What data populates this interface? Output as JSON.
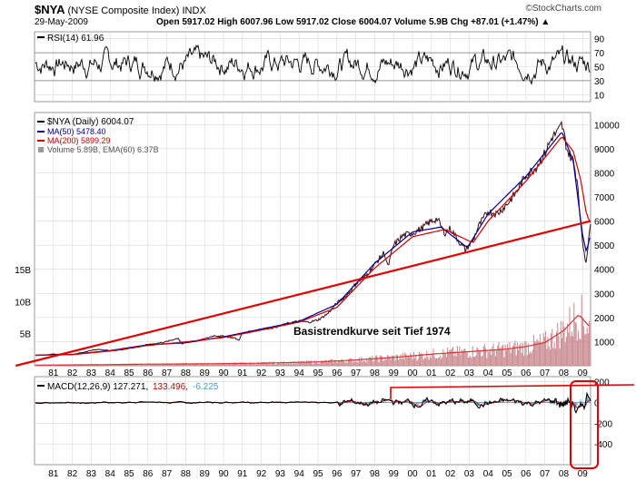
{
  "header": {
    "ticker": "$NYA",
    "name": "(NYSE Composite Index)",
    "exchange": "INDX",
    "date": "29-May-2009",
    "quote": "Open 5917.02  High 6007.96  Low 5917.02  Close 6004.07  Volume 5.9B  Chg +87.01 (+1.47%) ▲",
    "brand": "©StockCharts.com"
  },
  "colors": {
    "price": "#3a0a14",
    "ma50": "#000090",
    "ma200": "#d00000",
    "trend": "#e00000",
    "volume": "#c8888e",
    "rsi": "#000000",
    "macd": "#000000",
    "signal": "#d00000",
    "histogram": "#4a9bd0",
    "grid": "#d8d8d8"
  },
  "chart_data": [
    {
      "type": "line",
      "title": "RSI(14) 61.96",
      "legend": [
        "RSI(14) 61.96"
      ],
      "ylim": [
        0,
        100
      ],
      "y_ticks": [
        "90",
        "70",
        "50",
        "30",
        "10"
      ],
      "guide_lines": [
        70,
        30
      ],
      "x_start_year": 1980,
      "x_end_year": 2009.42
    },
    {
      "type": "line",
      "title": "$NYA (Daily) 6004.07",
      "legend": [
        "$NYA (Daily) 6004.07",
        "MA(50) 5478.40",
        "MA(200) 5899.29",
        "Volume 5.89B, EMA(60) 6.37B"
      ],
      "y_ticks": [
        "10000",
        "9000",
        "8000",
        "7000",
        "6000",
        "5000",
        "4000",
        "3000",
        "2000",
        "1000"
      ],
      "volume_ticks": [
        "15B",
        "10B",
        "5B"
      ],
      "x_ticks": [
        "81",
        "82",
        "83",
        "84",
        "85",
        "86",
        "87",
        "88",
        "89",
        "90",
        "91",
        "92",
        "93",
        "94",
        "95",
        "96",
        "97",
        "98",
        "99",
        "00",
        "01",
        "02",
        "03",
        "04",
        "05",
        "06",
        "07",
        "08",
        "09"
      ],
      "series": [
        {
          "name": "$NYA",
          "x": [
            1980.0,
            1980.5,
            1981.0,
            1981.5,
            1982.0,
            1982.6,
            1983.0,
            1983.5,
            1984.0,
            1984.5,
            1985.0,
            1985.5,
            1986.0,
            1986.5,
            1987.0,
            1987.6,
            1987.8,
            1988.0,
            1988.5,
            1989.0,
            1989.5,
            1990.0,
            1990.6,
            1990.8,
            1991.0,
            1991.5,
            1992.0,
            1992.5,
            1993.0,
            1993.5,
            1994.0,
            1994.5,
            1995.0,
            1995.5,
            1996.0,
            1996.5,
            1997.0,
            1997.5,
            1998.0,
            1998.5,
            1998.7,
            1999.0,
            1999.5,
            2000.0,
            2000.5,
            2000.9,
            2001.3,
            2001.7,
            2002.0,
            2002.5,
            2002.8,
            2003.2,
            2003.5,
            2004.0,
            2004.5,
            2005.0,
            2005.5,
            2006.0,
            2006.5,
            2007.0,
            2007.4,
            2007.7,
            2007.9,
            2008.2,
            2008.5,
            2008.75,
            2008.9,
            2009.0,
            2009.17,
            2009.3,
            2009.42
          ],
          "values": [
            430,
            450,
            480,
            470,
            460,
            560,
            640,
            680,
            620,
            650,
            720,
            780,
            880,
            930,
            1000,
            1150,
            900,
            960,
            1020,
            1110,
            1250,
            1220,
            1150,
            1050,
            1350,
            1430,
            1540,
            1560,
            1660,
            1780,
            1850,
            1800,
            1900,
            2150,
            2600,
            2900,
            3400,
            3700,
            4200,
            4700,
            4100,
            5000,
            5400,
            5500,
            5700,
            5950,
            6100,
            5500,
            5700,
            5100,
            4800,
            5200,
            5800,
            6400,
            6300,
            6700,
            7200,
            7900,
            8200,
            8800,
            9500,
            9700,
            10000,
            8900,
            8500,
            7500,
            5800,
            5100,
            4300,
            5000,
            6004
          ]
        },
        {
          "name": "MA(50)",
          "x": [
            1980.0,
            1982.0,
            1984.0,
            1986.0,
            1988.0,
            1990.0,
            1992.0,
            1994.0,
            1996.0,
            1998.0,
            2000.0,
            2001.5,
            2002.9,
            2004.0,
            2006.0,
            2007.9,
            2008.5,
            2009.0,
            2009.2,
            2009.42
          ],
          "values": [
            440,
            470,
            630,
            870,
            950,
            1200,
            1520,
            1840,
            2550,
            4250,
            5550,
            5750,
            4900,
            6300,
            7850,
            9700,
            8500,
            5400,
            4700,
            5478
          ]
        },
        {
          "name": "MA(200)",
          "x": [
            1980.0,
            1982.0,
            1984.0,
            1986.0,
            1988.0,
            1990.0,
            1992.0,
            1994.0,
            1996.0,
            1998.0,
            2000.0,
            2001.7,
            2003.2,
            2004.0,
            2006.0,
            2007.9,
            2008.5,
            2008.9,
            2009.2,
            2009.42
          ],
          "values": [
            430,
            460,
            610,
            840,
            990,
            1170,
            1480,
            1810,
            2420,
            4050,
            5350,
            5650,
            5100,
            6000,
            7650,
            9500,
            8900,
            7700,
            6300,
            5899
          ]
        },
        {
          "name": "Basistrendkurve",
          "x": [
            1979.0,
            2009.42
          ],
          "values": [
            0,
            6000
          ]
        },
        {
          "name": "Volume (B)",
          "x": [
            1980,
            1983,
            1986,
            1989,
            1992,
            1995,
            1997,
            1999,
            2001,
            2003,
            2005,
            2006,
            2007,
            2008,
            2008.8,
            2009.42
          ],
          "values": [
            0.1,
            0.15,
            0.25,
            0.3,
            0.4,
            0.6,
            0.9,
            1.3,
            1.8,
            2.2,
            2.6,
            3.0,
            3.6,
            5.5,
            8.0,
            5.9
          ]
        }
      ],
      "ylim": [
        0,
        10500
      ],
      "annotation": "Basistrendkurve seit Tief 1974"
    },
    {
      "type": "line",
      "title": "MACD(12,26,9) 127.271, 133.496, -6.225",
      "legend": [
        "MACD(12,26,9) 127.271,",
        "133.496,",
        "-6.225"
      ],
      "y_ticks": [
        "200",
        "0",
        "-200",
        "-400"
      ],
      "ylim": [
        -600,
        250
      ]
    }
  ]
}
